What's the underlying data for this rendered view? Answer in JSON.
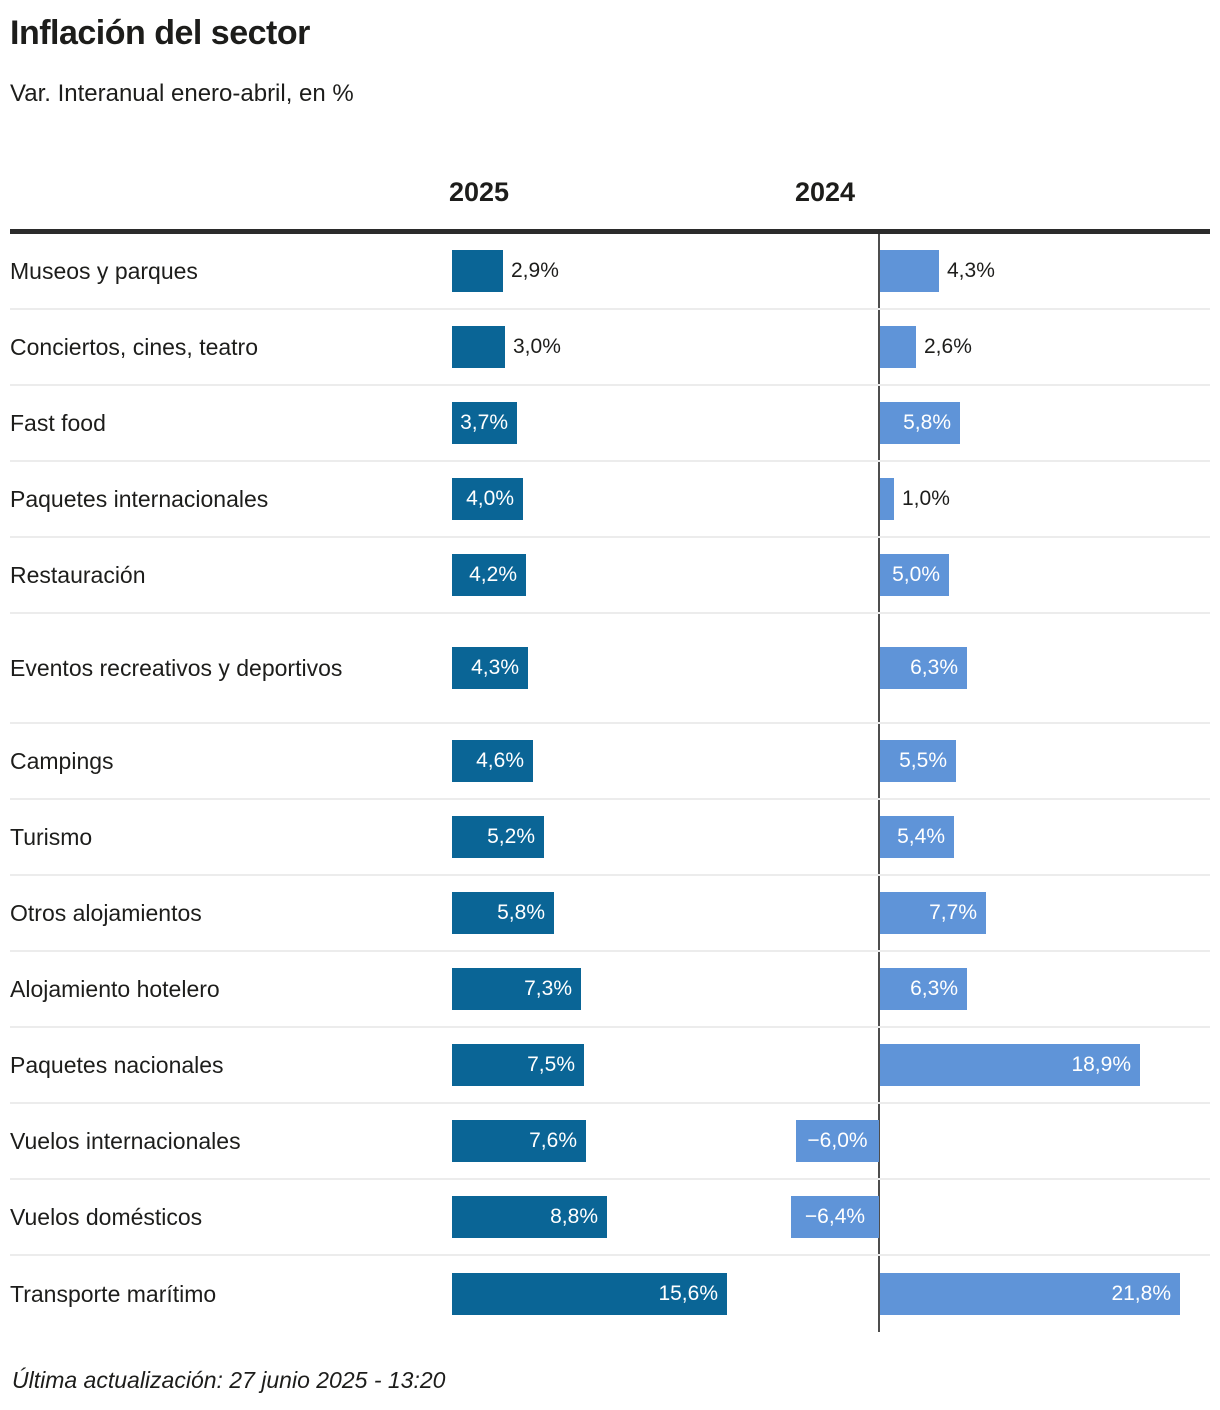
{
  "title": "Inflación del sector",
  "subtitle": "Var. Interanual enero-abril, en %",
  "footer": "Última actualización: 27 junio 2025 - 13:20",
  "colors": {
    "bar_2025": "#0a6596",
    "bar_2024": "#5f94d8",
    "rule": "#2b2b2b",
    "separator": "#ececec",
    "axis": "#4d4d4d",
    "text": "#1d1d1b",
    "value_inside": "#ffffff"
  },
  "chart_data": {
    "type": "bar",
    "orientation": "horizontal",
    "title": "Inflación del sector",
    "subtitle": "Var. Interanual enero-abril, en %",
    "unit": "%",
    "grid": "row-separators",
    "categories": [
      "Museos y parques",
      "Conciertos, cines, teatro",
      "Fast food",
      "Paquetes internacionales",
      "Restauración",
      "Eventos recreativos y deportivos",
      "Campings",
      "Turismo",
      "Otros alojamientos",
      "Alojamiento hotelero",
      "Paquetes nacionales",
      "Vuelos internacionales",
      "Vuelos domésticos",
      "Transporte marítimo"
    ],
    "series": [
      {
        "name": "2025",
        "values": [
          2.9,
          3.0,
          3.7,
          4.0,
          4.2,
          4.3,
          4.6,
          5.2,
          5.8,
          7.3,
          7.5,
          7.6,
          8.8,
          15.6
        ],
        "labels": [
          "2,9%",
          "3,0%",
          "3,7%",
          "4,0%",
          "4,2%",
          "4,3%",
          "4,6%",
          "5,2%",
          "5,8%",
          "7,3%",
          "7,5%",
          "7,6%",
          "8,8%",
          "15,6%"
        ]
      },
      {
        "name": "2024",
        "values": [
          4.3,
          2.6,
          5.8,
          1.0,
          5.0,
          6.3,
          5.5,
          5.4,
          7.7,
          6.3,
          18.9,
          -6.0,
          -6.4,
          21.8
        ],
        "labels": [
          "4,3%",
          "2,6%",
          "5,8%",
          "1,0%",
          "5,0%",
          "6,3%",
          "5,5%",
          "5,4%",
          "7,7%",
          "6,3%",
          "18,9%",
          "−6,0%",
          "−6,4%",
          "21,8%"
        ]
      }
    ]
  }
}
